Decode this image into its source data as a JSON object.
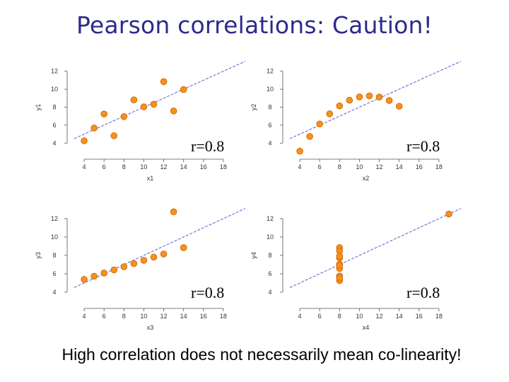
{
  "title": "Pearson correlations: Caution!",
  "caption": "High correlation does not  necessarily mean co-linearity!",
  "colors": {
    "title": "#2b2b8c",
    "point_fill": "#f5921e",
    "point_edge": "#d96a00",
    "fit_line": "#5b5bd6",
    "axis": "#555555"
  },
  "chart_data": [
    {
      "type": "scatter",
      "xlabel": "x1",
      "ylabel": "y1",
      "annotation": "r=0.8",
      "xticks": [
        4,
        6,
        8,
        10,
        12,
        14,
        16,
        18
      ],
      "yticks": [
        4,
        6,
        8,
        10,
        12
      ],
      "xlim": [
        3,
        19
      ],
      "ylim": [
        3,
        13
      ],
      "x": [
        10,
        8,
        13,
        9,
        11,
        14,
        6,
        4,
        12,
        7,
        5
      ],
      "y": [
        8.04,
        6.95,
        7.58,
        8.81,
        8.33,
        9.96,
        7.24,
        4.26,
        10.84,
        4.82,
        5.68
      ],
      "fit": {
        "intercept": 3.0,
        "slope": 0.5
      }
    },
    {
      "type": "scatter",
      "xlabel": "x2",
      "ylabel": "y2",
      "annotation": "r=0.8",
      "xticks": [
        4,
        6,
        8,
        10,
        12,
        14,
        16,
        18
      ],
      "yticks": [
        4,
        6,
        8,
        10,
        12
      ],
      "xlim": [
        3,
        19
      ],
      "ylim": [
        3,
        13
      ],
      "x": [
        10,
        8,
        13,
        9,
        11,
        14,
        6,
        4,
        12,
        7,
        5
      ],
      "y": [
        9.14,
        8.14,
        8.74,
        8.77,
        9.26,
        8.1,
        6.13,
        3.1,
        9.13,
        7.26,
        4.74
      ],
      "fit": {
        "intercept": 3.0,
        "slope": 0.5
      }
    },
    {
      "type": "scatter",
      "xlabel": "x3",
      "ylabel": "y3",
      "annotation": "r=0.8",
      "xticks": [
        4,
        6,
        8,
        10,
        12,
        14,
        16,
        18
      ],
      "yticks": [
        4,
        6,
        8,
        10,
        12
      ],
      "xlim": [
        3,
        19
      ],
      "ylim": [
        3,
        13
      ],
      "x": [
        10,
        8,
        13,
        9,
        11,
        14,
        6,
        4,
        12,
        7,
        5
      ],
      "y": [
        7.46,
        6.77,
        12.74,
        7.11,
        7.81,
        8.84,
        6.08,
        5.39,
        8.15,
        6.42,
        5.73
      ],
      "fit": {
        "intercept": 3.0,
        "slope": 0.5
      }
    },
    {
      "type": "scatter",
      "xlabel": "x4",
      "ylabel": "y4",
      "annotation": "r=0.8",
      "xticks": [
        4,
        6,
        8,
        10,
        12,
        14,
        16,
        18
      ],
      "yticks": [
        4,
        6,
        8,
        10,
        12
      ],
      "xlim": [
        3,
        19
      ],
      "ylim": [
        3,
        13
      ],
      "x": [
        8,
        8,
        8,
        8,
        8,
        8,
        8,
        19,
        8,
        8,
        8
      ],
      "y": [
        6.58,
        5.76,
        7.71,
        8.84,
        8.47,
        7.04,
        5.25,
        12.5,
        5.56,
        7.91,
        6.89
      ],
      "fit": {
        "intercept": 3.0,
        "slope": 0.5
      }
    }
  ]
}
